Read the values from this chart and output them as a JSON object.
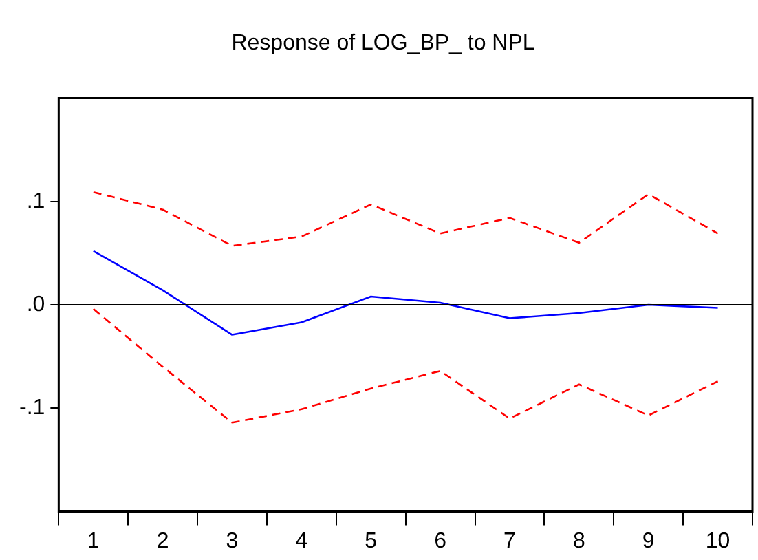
{
  "chart_data": {
    "type": "line",
    "title": "Response of LOG_BP_ to NPL",
    "categories": [
      "1",
      "2",
      "3",
      "4",
      "5",
      "6",
      "7",
      "8",
      "9",
      "10"
    ],
    "series": [
      {
        "color": "#0000ff",
        "line_style": "solid",
        "values": [
          0.052,
          0.014,
          -0.029,
          -0.017,
          0.008,
          0.002,
          -0.013,
          -0.008,
          0.0,
          -0.003
        ]
      },
      {
        "color": "#ff0000",
        "line_style": "dashed",
        "values": [
          0.109,
          0.092,
          0.057,
          0.066,
          0.097,
          0.069,
          0.084,
          0.06,
          0.107,
          0.069
        ]
      },
      {
        "color": "#ff0000",
        "line_style": "dashed",
        "values": [
          -0.004,
          -0.06,
          -0.114,
          -0.101,
          -0.081,
          -0.064,
          -0.11,
          -0.077,
          -0.107,
          -0.074
        ]
      }
    ],
    "ylim": [
      -0.2,
      0.2
    ],
    "yticks": [
      {
        "value": 0.1,
        "label": ".1"
      },
      {
        "value": 0,
        "label": ".0"
      },
      {
        "value": -0.1,
        "label": "-.1"
      }
    ],
    "ref_lines": [
      {
        "axis": "y",
        "value": 0,
        "color": "#000000",
        "line_style": "solid"
      }
    ],
    "grid": false,
    "legend": false,
    "marker": "none"
  }
}
